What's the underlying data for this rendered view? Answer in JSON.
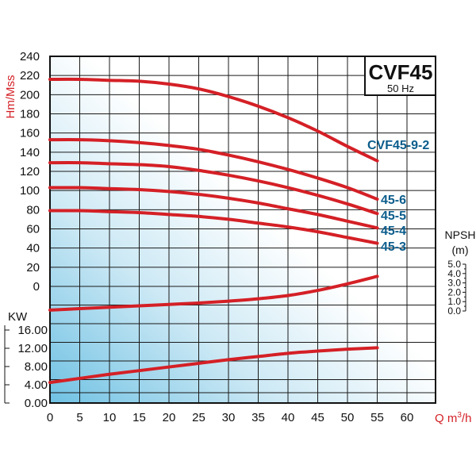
{
  "chart_data": {
    "type": "line",
    "title": "CVF45",
    "subtitle": "50 Hz",
    "xlabel": "Q m³/h",
    "x_ticks": [
      "0",
      "5",
      "10",
      "15",
      "20",
      "25",
      "30",
      "35",
      "40",
      "45",
      "50",
      "55",
      "60"
    ],
    "xlim": [
      0,
      65
    ],
    "head_panel": {
      "ylabel": "Hm/Mss",
      "y_ticks": [
        "240",
        "220",
        "200",
        "180",
        "160",
        "140",
        "120",
        "100",
        "80",
        "60",
        "40",
        "20",
        "0"
      ],
      "ylim": [
        0,
        240
      ],
      "series": [
        {
          "name": "CVF45-9-2",
          "x": [
            0,
            5,
            10,
            15,
            20,
            25,
            30,
            35,
            40,
            45,
            50,
            55
          ],
          "y": [
            216,
            216,
            215,
            214,
            211,
            206,
            198,
            188,
            176,
            162,
            146,
            131
          ]
        },
        {
          "name": "45-6",
          "x": [
            0,
            5,
            10,
            15,
            20,
            25,
            30,
            35,
            40,
            45,
            50,
            55
          ],
          "y": [
            153,
            153,
            152,
            150,
            147,
            143,
            137,
            130,
            122,
            113,
            103,
            91
          ]
        },
        {
          "name": "45-5",
          "x": [
            0,
            5,
            10,
            15,
            20,
            25,
            30,
            35,
            40,
            45,
            50,
            55
          ],
          "y": [
            129,
            129,
            128,
            127,
            125,
            121,
            116,
            110,
            103,
            95,
            86,
            76
          ]
        },
        {
          "name": "45-4",
          "x": [
            0,
            5,
            10,
            15,
            20,
            25,
            30,
            35,
            40,
            45,
            50,
            55
          ],
          "y": [
            103,
            103,
            102,
            101,
            99,
            96,
            92,
            87,
            81,
            75,
            68,
            61
          ]
        },
        {
          "name": "45-3",
          "x": [
            0,
            5,
            10,
            15,
            20,
            25,
            30,
            35,
            40,
            45,
            50,
            55
          ],
          "y": [
            79,
            79,
            78,
            77,
            75,
            73,
            70,
            66,
            62,
            57,
            51,
            45
          ]
        }
      ]
    },
    "npsh_panel": {
      "ylabel": "NPSH (m)",
      "y_ticks": [
        "5.0",
        "4.0",
        "3.0",
        "2.0",
        "1.0",
        "0.0"
      ],
      "ylim": [
        0,
        5
      ],
      "series": [
        {
          "x": [
            0,
            5,
            10,
            15,
            20,
            25,
            30,
            35,
            40,
            45,
            50,
            55
          ],
          "y": [
            0.1,
            0.25,
            0.4,
            0.55,
            0.7,
            0.85,
            1.05,
            1.3,
            1.65,
            2.2,
            2.9,
            3.7
          ]
        }
      ]
    },
    "power_panel": {
      "ylabel": "KW",
      "y_ticks": [
        "16.00",
        "12.00",
        "8.00",
        "4.00",
        "0.00"
      ],
      "ylim": [
        0,
        18
      ],
      "series": [
        {
          "x": [
            0,
            5,
            10,
            15,
            20,
            25,
            30,
            35,
            40,
            45,
            50,
            55
          ],
          "y": [
            4.5,
            5.4,
            6.3,
            7.1,
            7.9,
            8.7,
            9.5,
            10.2,
            10.9,
            11.4,
            11.8,
            12.1
          ]
        }
      ]
    },
    "grid": true,
    "colors": {
      "curve": "#d42026",
      "label": "#0b5d8c",
      "gradient_from": "#7cc6e6",
      "gradient_to": "#ffffff"
    }
  }
}
